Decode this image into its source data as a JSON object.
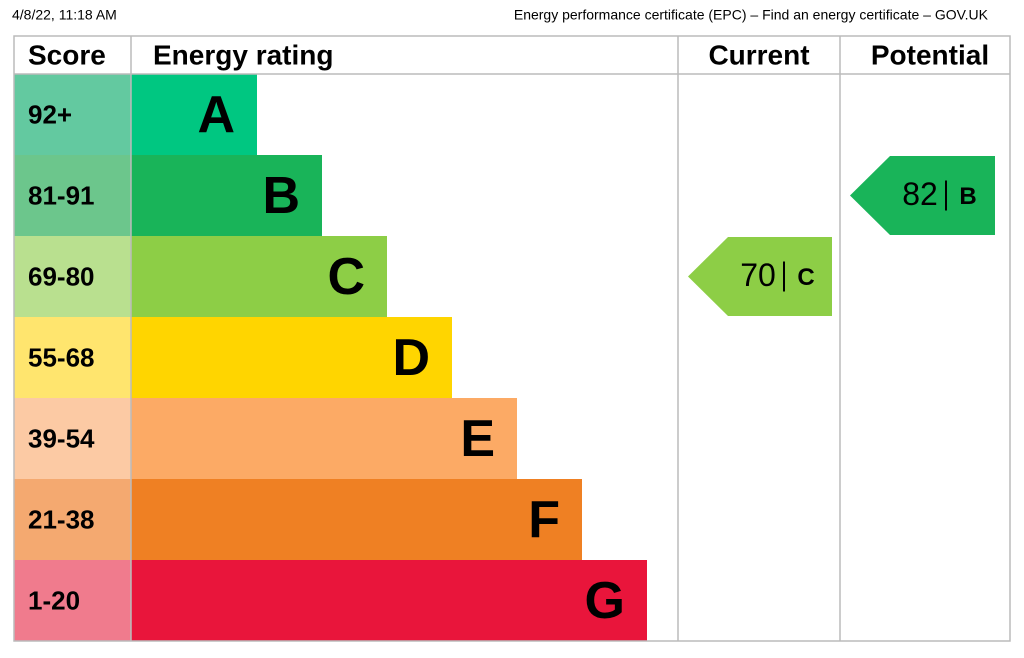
{
  "header": {
    "timestamp": "4/8/22, 11:18 AM",
    "title": "Energy performance certificate (EPC) – Find an energy certificate – GOV.UK"
  },
  "table": {
    "columns": [
      "Score",
      "Energy rating",
      "Current",
      "Potential"
    ],
    "rows": [
      {
        "score": "92+",
        "rating": "A",
        "color": "#00c781",
        "score_color": "#63c9a0"
      },
      {
        "score": "81-91",
        "rating": "B",
        "color": "#19b459",
        "score_color": "#6cc68c"
      },
      {
        "score": "69-80",
        "rating": "C",
        "color": "#8dce46",
        "score_color": "#b9e08f"
      },
      {
        "score": "55-68",
        "rating": "D",
        "color": "#ffd500",
        "score_color": "#ffe56e"
      },
      {
        "score": "39-54",
        "rating": "E",
        "color": "#fcaa65",
        "score_color": "#fccaa4"
      },
      {
        "score": "21-38",
        "rating": "F",
        "color": "#ef8023",
        "score_color": "#f4a970"
      },
      {
        "score": "1-20",
        "rating": "G",
        "color": "#e9153b",
        "score_color": "#f07b8d"
      }
    ]
  },
  "current": {
    "value": 70,
    "rating": "C"
  },
  "potential": {
    "value": 82,
    "rating": "B"
  }
}
